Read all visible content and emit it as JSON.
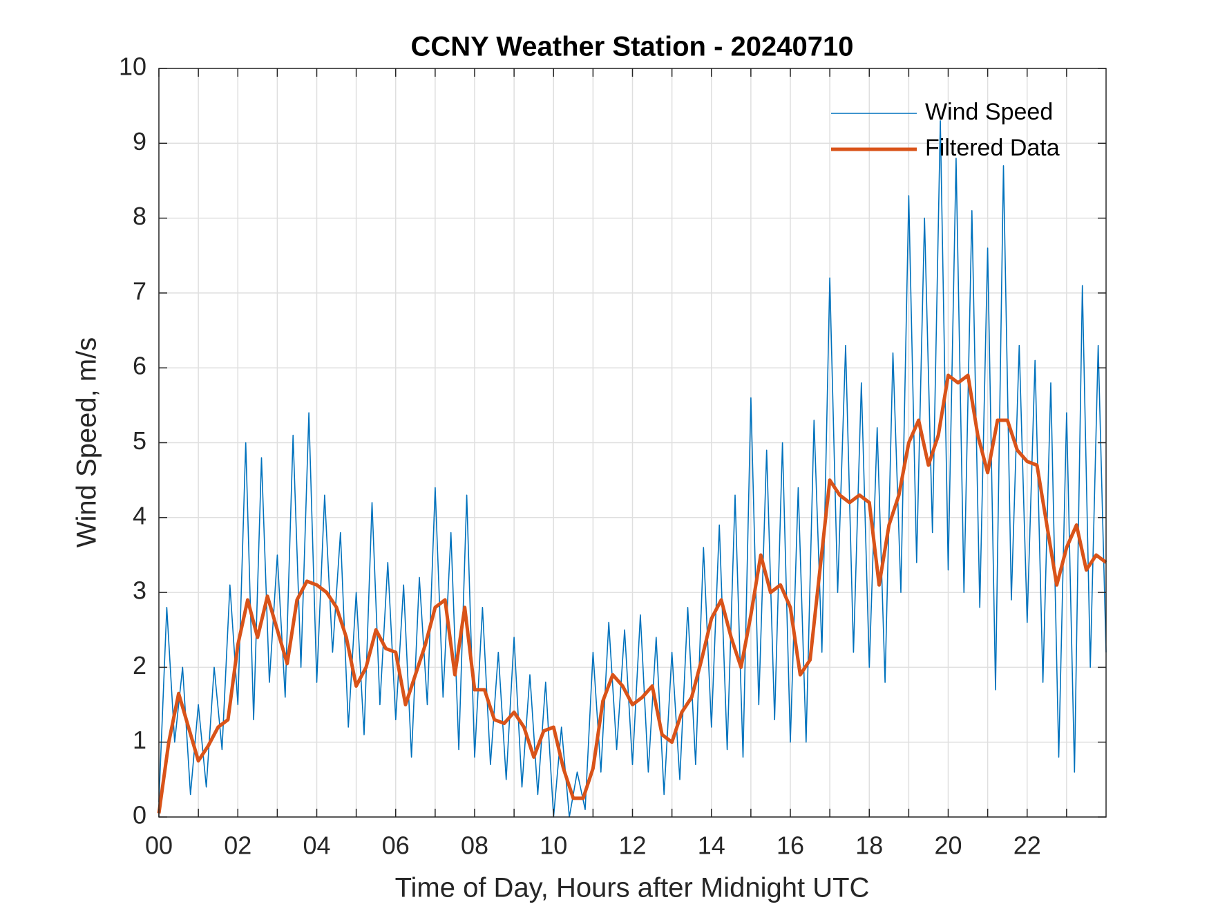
{
  "chart_data": {
    "type": "line",
    "title": "CCNY Weather Station - 20240710",
    "x_label": "Time of Day, Hours after Midnight UTC",
    "y_label": "Wind Speed, m/s",
    "xlim": [
      0,
      24
    ],
    "ylim": [
      0,
      10
    ],
    "xticks": [
      {
        "value": 0,
        "label": "00"
      },
      {
        "value": 2,
        "label": "02"
      },
      {
        "value": 4,
        "label": "04"
      },
      {
        "value": 6,
        "label": "06"
      },
      {
        "value": 8,
        "label": "08"
      },
      10,
      12,
      14,
      16,
      18,
      20,
      22
    ],
    "xminorticks": [
      1,
      3,
      5,
      7,
      9,
      11,
      13,
      15,
      17,
      19,
      21,
      23
    ],
    "yticks": [
      0,
      1,
      2,
      3,
      4,
      5,
      6,
      7,
      8,
      9,
      10
    ],
    "grid": true,
    "legend": "upper right",
    "series": [
      {
        "name": "Wind Speed",
        "color": "#0072bd",
        "width": 1.6,
        "x": [
          0,
          0.2,
          0.4,
          0.6,
          0.8,
          1,
          1.2,
          1.4,
          1.6,
          1.8,
          2,
          2.2,
          2.4,
          2.6,
          2.8,
          3,
          3.2,
          3.4,
          3.6,
          3.8,
          4,
          4.2,
          4.4,
          4.6,
          4.8,
          5,
          5.2,
          5.4,
          5.6,
          5.8,
          6,
          6.2,
          6.4,
          6.6,
          6.8,
          7,
          7.2,
          7.4,
          7.6,
          7.8,
          8,
          8.2,
          8.4,
          8.6,
          8.8,
          9,
          9.2,
          9.4,
          9.6,
          9.8,
          10,
          10.2,
          10.4,
          10.6,
          10.8,
          11,
          11.2,
          11.4,
          11.6,
          11.8,
          12,
          12.2,
          12.4,
          12.6,
          12.8,
          13,
          13.2,
          13.4,
          13.6,
          13.8,
          14,
          14.2,
          14.4,
          14.6,
          14.8,
          15,
          15.2,
          15.4,
          15.6,
          15.8,
          16,
          16.2,
          16.4,
          16.6,
          16.8,
          17,
          17.2,
          17.4,
          17.6,
          17.8,
          18,
          18.2,
          18.4,
          18.6,
          18.8,
          19,
          19.2,
          19.4,
          19.6,
          19.8,
          20,
          20.2,
          20.4,
          20.6,
          20.8,
          21,
          21.2,
          21.4,
          21.6,
          21.8,
          22,
          22.2,
          22.4,
          22.6,
          22.8,
          23,
          23.2,
          23.4,
          23.6,
          23.8,
          24
        ],
        "values": [
          0.2,
          2.8,
          1.0,
          2.0,
          0.3,
          1.5,
          0.4,
          2.0,
          0.9,
          3.1,
          1.5,
          5.0,
          1.3,
          4.8,
          1.8,
          3.5,
          1.6,
          5.1,
          2.0,
          5.4,
          1.8,
          4.3,
          2.2,
          3.8,
          1.2,
          3.0,
          1.1,
          4.2,
          1.5,
          3.4,
          1.3,
          3.1,
          0.8,
          3.2,
          1.5,
          4.4,
          1.6,
          3.8,
          0.9,
          4.3,
          0.8,
          2.8,
          0.7,
          2.2,
          0.5,
          2.4,
          0.4,
          1.9,
          0.3,
          1.8,
          0.0,
          1.2,
          0.0,
          0.6,
          0.1,
          2.2,
          0.6,
          2.6,
          0.9,
          2.5,
          0.7,
          2.7,
          0.6,
          2.4,
          0.3,
          2.2,
          0.5,
          2.8,
          0.7,
          3.6,
          1.2,
          3.9,
          0.9,
          4.3,
          0.8,
          5.6,
          1.5,
          4.9,
          1.3,
          5.0,
          1.0,
          4.4,
          1.0,
          5.3,
          2.2,
          7.2,
          3.0,
          6.3,
          2.2,
          5.8,
          2.0,
          5.2,
          1.8,
          6.2,
          3.0,
          8.3,
          3.4,
          8.0,
          3.8,
          9.3,
          3.3,
          8.8,
          3.0,
          8.1,
          2.8,
          7.6,
          1.7,
          8.7,
          2.9,
          6.3,
          2.6,
          6.1,
          1.8,
          5.8,
          0.8,
          5.4,
          0.6,
          7.1,
          2.0,
          6.3,
          2.2
        ]
      },
      {
        "name": "Filtered Data",
        "color": "#d95319",
        "width": 5,
        "x": [
          0,
          0.25,
          0.5,
          0.75,
          1,
          1.25,
          1.5,
          1.75,
          2,
          2.25,
          2.5,
          2.75,
          3,
          3.25,
          3.5,
          3.75,
          4,
          4.25,
          4.5,
          4.75,
          5,
          5.25,
          5.5,
          5.75,
          6,
          6.25,
          6.5,
          6.75,
          7,
          7.25,
          7.5,
          7.75,
          8,
          8.25,
          8.5,
          8.75,
          9,
          9.25,
          9.5,
          9.75,
          10,
          10.25,
          10.5,
          10.75,
          11,
          11.25,
          11.5,
          11.75,
          12,
          12.25,
          12.5,
          12.75,
          13,
          13.25,
          13.5,
          13.75,
          14,
          14.25,
          14.5,
          14.75,
          15,
          15.25,
          15.5,
          15.75,
          16,
          16.25,
          16.5,
          16.75,
          17,
          17.25,
          17.5,
          17.75,
          18,
          18.25,
          18.5,
          18.75,
          19,
          19.25,
          19.5,
          19.75,
          20,
          20.25,
          20.5,
          20.75,
          21,
          21.25,
          21.5,
          21.75,
          22,
          22.25,
          22.5,
          22.75,
          23,
          23.25,
          23.5,
          23.75,
          24
        ],
        "values": [
          0.05,
          1.0,
          1.65,
          1.2,
          0.75,
          0.95,
          1.2,
          1.3,
          2.3,
          2.9,
          2.4,
          2.95,
          2.5,
          2.05,
          2.9,
          3.15,
          3.1,
          3.0,
          2.8,
          2.4,
          1.75,
          2.0,
          2.5,
          2.25,
          2.2,
          1.5,
          1.9,
          2.3,
          2.8,
          2.9,
          1.9,
          2.8,
          1.7,
          1.7,
          1.3,
          1.25,
          1.4,
          1.2,
          0.8,
          1.15,
          1.2,
          0.65,
          0.25,
          0.25,
          0.65,
          1.55,
          1.9,
          1.75,
          1.5,
          1.6,
          1.75,
          1.1,
          1.0,
          1.4,
          1.6,
          2.1,
          2.65,
          2.9,
          2.4,
          2.0,
          2.7,
          3.5,
          3.0,
          3.1,
          2.8,
          1.9,
          2.1,
          3.3,
          4.5,
          4.3,
          4.2,
          4.3,
          4.2,
          3.1,
          3.9,
          4.3,
          5.0,
          5.3,
          4.7,
          5.1,
          5.9,
          5.8,
          5.9,
          5.1,
          4.6,
          5.3,
          5.3,
          4.9,
          4.75,
          4.7,
          3.9,
          3.1,
          3.6,
          3.9,
          3.3,
          3.5,
          3.4
        ]
      }
    ]
  }
}
